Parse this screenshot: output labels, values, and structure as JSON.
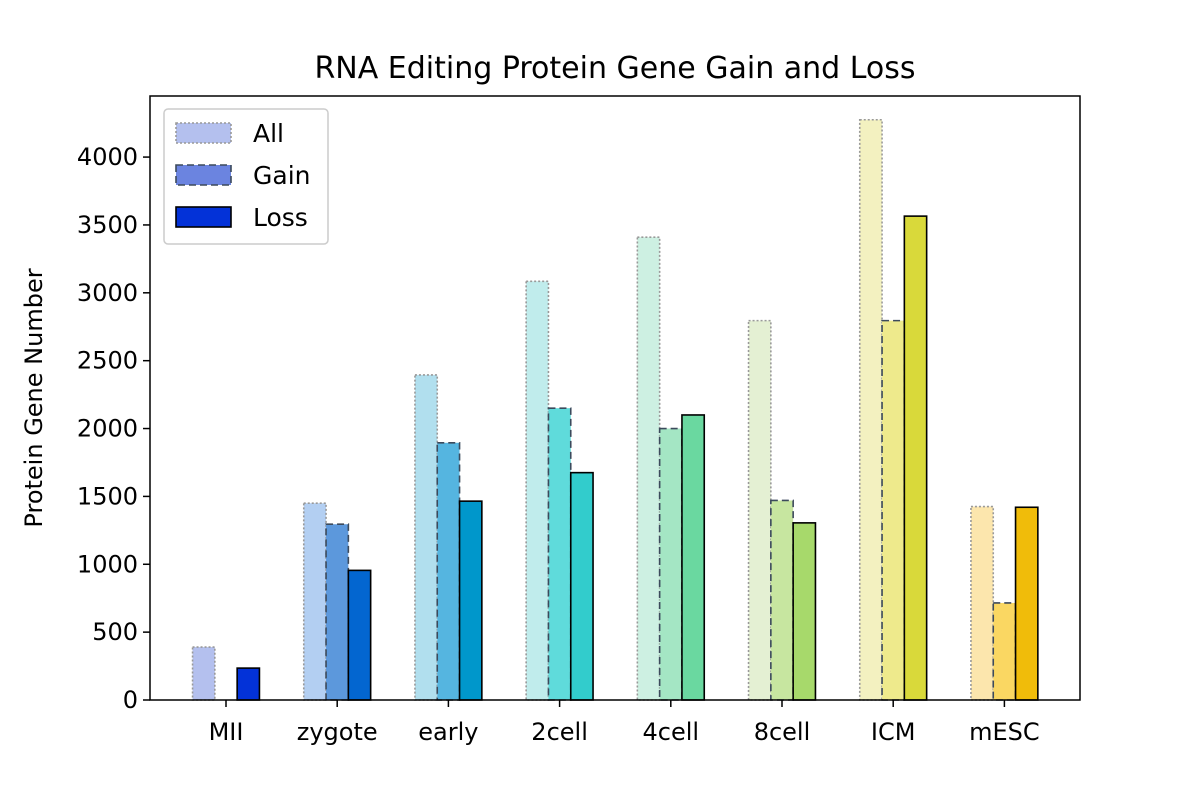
{
  "chart_data": {
    "type": "bar",
    "title": "RNA Editing Protein Gene Gain and Loss",
    "xlabel": "",
    "ylabel": "Protein Gene Number",
    "ylim": [
      0,
      4450
    ],
    "yticks": [
      0,
      500,
      1000,
      1500,
      2000,
      2500,
      3000,
      3500,
      4000
    ],
    "grid": false,
    "legend_position": "top-left",
    "categories": [
      "MII",
      "zygote",
      "early",
      "2cell",
      "4cell",
      "8cell",
      "ICM",
      "mESC"
    ],
    "series": [
      {
        "name": "All",
        "line_style": "dotted",
        "edge_color": "#999999",
        "values": [
          390,
          1450,
          2395,
          3085,
          3410,
          2795,
          4275,
          1425
        ],
        "colors": [
          "#b4c0ee",
          "#b3cff2",
          "#b1dfee",
          "#c0ecec",
          "#cdf0e2",
          "#e4f0d3",
          "#f3f1c0",
          "#fce6ad"
        ]
      },
      {
        "name": "Gain",
        "line_style": "dashed",
        "edge_color": "#3c4a5c",
        "values": [
          0,
          1295,
          1895,
          2150,
          2000,
          1470,
          2795,
          715
        ],
        "colors": [
          "#6b84e0",
          "#5c98dc",
          "#55b5e0",
          "#5fdbdb",
          "#a4e6c4",
          "#c7e6a0",
          "#eeea8c",
          "#fad762"
        ]
      },
      {
        "name": "Loss",
        "line_style": "solid",
        "edge_color": "#000000",
        "values": [
          235,
          955,
          1465,
          1675,
          2100,
          1305,
          3565,
          1420
        ],
        "colors": [
          "#0332d8",
          "#0366d0",
          "#0097cb",
          "#32cccc",
          "#6ad8a0",
          "#a7d96b",
          "#d9d93a",
          "#f0bc0a"
        ]
      }
    ]
  }
}
